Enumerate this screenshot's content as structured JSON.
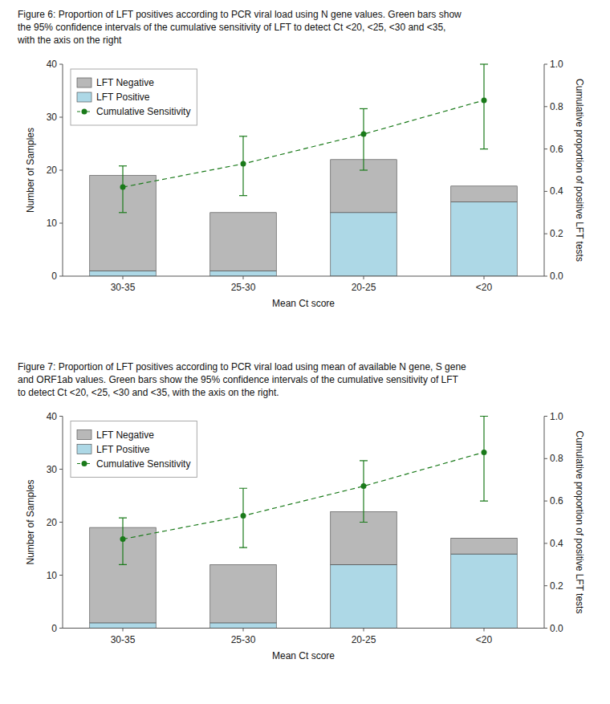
{
  "chart_data": [
    {
      "type": "bar",
      "title": [
        "Figure 6: Proportion of LFT positives according to PCR viral load using N gene values. Green bars show",
        "the 95% confidence intervals of the cumulative sensitivity of LFT to detect Ct <20, <25, <30 and <35,",
        "with the axis on the right"
      ],
      "categories": [
        "30-35",
        "25-30",
        "20-25",
        "<20"
      ],
      "stacked": true,
      "series": [
        {
          "name": "LFT Positive",
          "color": "#add8e6",
          "values": [
            1,
            1,
            12,
            14
          ]
        },
        {
          "name": "LFT Negative",
          "color": "#b8b8b8",
          "values": [
            18,
            11,
            10,
            3
          ]
        },
        {
          "name": "Cumulative Sensitivity",
          "type": "line",
          "axis": "y2",
          "color": "#1a7a1a",
          "marker": "circle",
          "line_style": "dashed",
          "values": [
            0.42,
            0.53,
            0.67,
            0.83
          ],
          "lower": [
            0.3,
            0.38,
            0.5,
            0.6
          ],
          "upper": [
            0.52,
            0.66,
            0.79,
            1.0
          ]
        }
      ],
      "x_label": "Mean Ct score",
      "y_label": "Number of Samples",
      "y2_label": "Cumulative proportion of positive LFT tests",
      "ylim": [
        0,
        40
      ],
      "yticks": [
        0,
        10,
        20,
        30,
        40
      ],
      "y2lim": [
        0.0,
        1.0
      ],
      "y2ticks": [
        {
          "value": 0.0,
          "label": "0.0"
        },
        0.2,
        0.4,
        0.6,
        0.8,
        {
          "value": 1.0,
          "label": "1.0"
        }
      ],
      "legend": "upper left",
      "grid": false
    },
    {
      "type": "bar",
      "title": [
        "Figure 7: Proportion of LFT positives according to PCR viral load using mean of available N gene, S gene",
        "and ORF1ab values. Green bars show the 95% confidence intervals of the cumulative sensitivity of LFT",
        "to detect Ct <20, <25, <30 and <35, with the axis on the right."
      ],
      "categories": [
        "30-35",
        "25-30",
        "20-25",
        "<20"
      ],
      "stacked": true,
      "series": [
        {
          "name": "LFT Positive",
          "color": "#add8e6",
          "values": [
            1,
            1,
            12,
            14
          ]
        },
        {
          "name": "LFT Negative",
          "color": "#b8b8b8",
          "values": [
            18,
            11,
            10,
            3
          ]
        },
        {
          "name": "Cumulative Sensitivity",
          "type": "line",
          "axis": "y2",
          "color": "#1a7a1a",
          "marker": "circle",
          "line_style": "dashed",
          "values": [
            0.42,
            0.53,
            0.67,
            0.83
          ],
          "lower": [
            0.3,
            0.38,
            0.5,
            0.6
          ],
          "upper": [
            0.52,
            0.66,
            0.79,
            1.0
          ]
        }
      ],
      "x_label": "Mean Ct score",
      "y_label": "Number of Samples",
      "y2_label": "Cumulative proportion of positive LFT tests",
      "ylim": [
        0,
        40
      ],
      "yticks": [
        0,
        10,
        20,
        30,
        40
      ],
      "y2lim": [
        0.0,
        1.0
      ],
      "y2ticks": [
        {
          "value": 0.0,
          "label": "0.0"
        },
        0.2,
        0.4,
        0.6,
        0.8,
        {
          "value": 1.0,
          "label": "1.0"
        }
      ],
      "legend": "upper left",
      "grid": false
    }
  ]
}
